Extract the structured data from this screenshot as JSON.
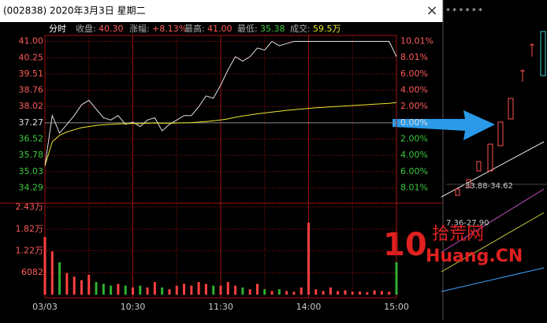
{
  "window": {
    "title": "(002838) 2020年3月3日 星期二",
    "close": "×"
  },
  "header": {
    "mode": "分时",
    "items": [
      {
        "label": "收盘:",
        "value": "40.30"
      },
      {
        "label": "涨幅:",
        "value": "+8.13%"
      },
      {
        "label": "最高:",
        "value": "41.00"
      },
      {
        "label": "最低:",
        "value": "35.38"
      },
      {
        "label": "成交:",
        "value": "59.5万"
      }
    ]
  },
  "chart_data": [
    {
      "type": "line",
      "x": [
        0,
        5,
        10,
        15,
        20,
        25,
        30,
        35,
        40,
        45,
        50,
        55,
        60,
        65,
        70,
        75,
        80,
        85,
        90,
        95,
        100,
        105,
        110,
        115,
        120,
        125,
        130,
        135,
        140,
        145,
        150,
        155,
        160,
        165,
        170,
        175,
        180,
        185,
        190,
        195,
        200,
        205,
        210,
        215,
        220,
        225,
        230,
        235,
        240
      ],
      "series": [
        {
          "color": "#e0e0e0",
          "values": [
            35.3,
            37.6,
            36.8,
            37.2,
            37.6,
            38.1,
            38.3,
            37.9,
            37.5,
            37.4,
            37.6,
            37.2,
            37.3,
            37.1,
            37.4,
            37.5,
            36.9,
            37.2,
            37.4,
            37.6,
            37.6,
            38.0,
            38.5,
            38.4,
            39.0,
            39.7,
            40.3,
            40.1,
            40.3,
            40.7,
            40.6,
            41.0,
            40.8,
            40.9,
            41.0,
            41.0,
            41.0,
            41.0,
            41.0,
            41.0,
            41.0,
            41.0,
            41.0,
            41.0,
            41.0,
            41.0,
            41.0,
            41.0,
            40.3
          ]
        },
        {
          "color": "#e8e830",
          "values": [
            35.3,
            36.4,
            36.7,
            36.85,
            36.95,
            37.05,
            37.1,
            37.15,
            37.18,
            37.2,
            37.22,
            37.23,
            37.24,
            37.24,
            37.25,
            37.26,
            37.25,
            37.25,
            37.26,
            37.27,
            37.28,
            37.3,
            37.33,
            37.36,
            37.4,
            37.45,
            37.52,
            37.58,
            37.63,
            37.68,
            37.72,
            37.76,
            37.8,
            37.84,
            37.87,
            37.9,
            37.93,
            37.96,
            37.98,
            38.0,
            38.02,
            38.04,
            38.06,
            38.08,
            38.1,
            38.12,
            38.14,
            38.16,
            38.2
          ]
        }
      ],
      "xlim": [
        0,
        240
      ],
      "xticks": [
        {
          "value": 0,
          "label": "03/03"
        },
        {
          "value": 60,
          "label": "10:30"
        },
        {
          "value": 120,
          "label": "11:30"
        },
        {
          "value": 180,
          "label": "14:00"
        },
        {
          "value": 240,
          "label": "15:00"
        }
      ],
      "xgrid": [
        30,
        90,
        150,
        210
      ],
      "ylim": [
        33.8,
        41.2
      ],
      "yticks": [
        {
          "value": 41,
          "label": "41.00"
        },
        40.25,
        39.51,
        38.76,
        38.02,
        37.27,
        36.52,
        35.78,
        35.03,
        34.29
      ],
      "y2lim": [
        -9.31,
        10.54
      ],
      "y2ticks": [
        {
          "value": 10.01,
          "label": "10.01%"
        },
        {
          "value": 8.01,
          "label": "8.01%"
        },
        {
          "value": 6,
          "label": "6.00%"
        },
        {
          "value": 4,
          "label": "4.00%"
        },
        {
          "value": 2,
          "label": "2.00%"
        },
        {
          "value": 0,
          "label": "0.00%"
        },
        {
          "value": -2,
          "label": "2.00%"
        },
        {
          "value": -4,
          "label": "4.00%"
        },
        {
          "value": -6,
          "label": "6.00%"
        },
        {
          "value": -8.01,
          "label": "8.01%"
        }
      ],
      "up_color": "#ff5a5a",
      "down_color": "#3cc83c",
      "grid": true
    },
    {
      "type": "bar",
      "x": [
        0,
        5,
        10,
        15,
        20,
        25,
        30,
        35,
        40,
        45,
        50,
        55,
        60,
        65,
        70,
        75,
        80,
        85,
        90,
        95,
        100,
        105,
        110,
        115,
        120,
        125,
        130,
        135,
        140,
        145,
        150,
        155,
        160,
        165,
        170,
        175,
        180,
        185,
        190,
        195,
        200,
        205,
        210,
        215,
        220,
        225,
        230,
        235,
        240
      ],
      "values": [
        16000,
        12000,
        9000,
        6000,
        5000,
        4000,
        5500,
        3500,
        3000,
        2500,
        3000,
        2500,
        2000,
        2500,
        2000,
        3500,
        2000,
        1500,
        2500,
        3000,
        2500,
        3500,
        3000,
        2500,
        2500,
        3500,
        2500,
        2000,
        1500,
        3000,
        1500,
        1000,
        1500,
        1000,
        800,
        2000,
        20000,
        1500,
        1000,
        2000,
        1000,
        1200,
        800,
        900,
        700,
        1200,
        1000,
        800,
        9000
      ],
      "xlim": [
        0,
        240
      ],
      "ylim": [
        0,
        24300
      ],
      "yticks": [
        {
          "value": 24300,
          "label": "2.43万"
        },
        {
          "value": 18200,
          "label": "1.82万"
        },
        {
          "value": 12200,
          "label": "1.22万"
        },
        6082
      ],
      "up_color": "#ff4040",
      "down_color": "#30b030"
    }
  ],
  "side": {
    "labels": [
      "33.88-34.62",
      "7.36-27.90"
    ],
    "stars": "* * * *   *   *",
    "watermark": {
      "mark": "10",
      "name": "拾荒网",
      "domain": "Huang.CN"
    }
  }
}
